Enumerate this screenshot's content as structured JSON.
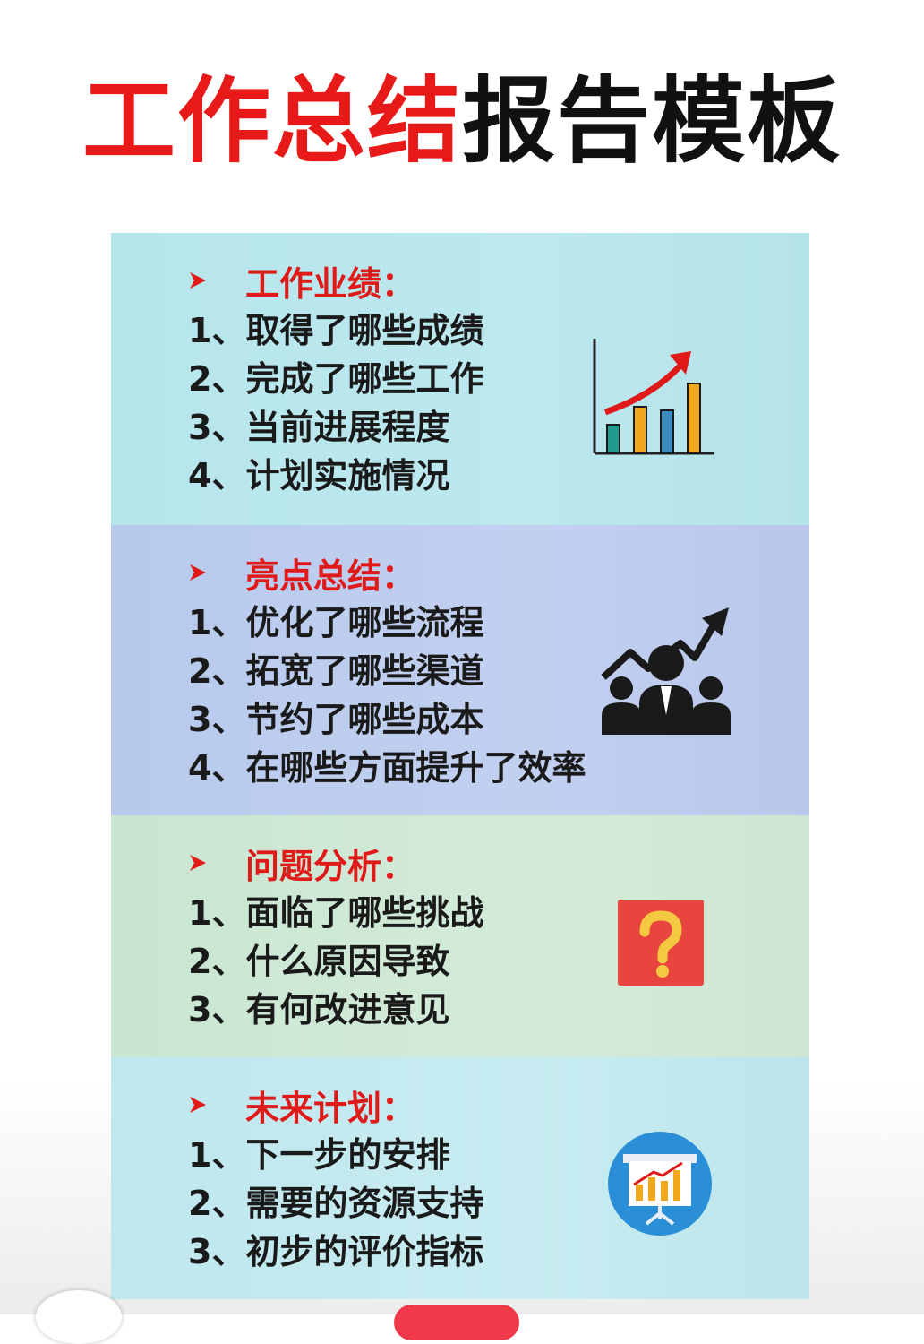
{
  "title": {
    "red_part": "工作总结",
    "black_part": "报告模板"
  },
  "colors": {
    "accent_red": "#e01919",
    "text_dark": "#1a1a1a"
  },
  "sections": [
    {
      "heading": "工作业绩：",
      "items": [
        "1、取得了哪些成绩",
        "2、完成了哪些工作",
        "3、当前进展程度",
        "4、计划实施情况"
      ],
      "icon": "bar-chart-up-arrow-icon"
    },
    {
      "heading": "亮点总结：",
      "items": [
        "1、优化了哪些流程",
        "2、拓宽了哪些渠道",
        "3、节约了哪些成本",
        "4、在哪些方面提升了效率"
      ],
      "icon": "team-growth-icon"
    },
    {
      "heading": "问题分析：",
      "items": [
        "1、面临了哪些挑战",
        "2、什么原因导致",
        "3、有何改进意见"
      ],
      "icon": "question-mark-icon"
    },
    {
      "heading": "未来计划：",
      "items": [
        "1、下一步的安排",
        "2、需要的资源支持",
        "3、初步的评价指标"
      ],
      "icon": "presentation-board-icon"
    }
  ]
}
